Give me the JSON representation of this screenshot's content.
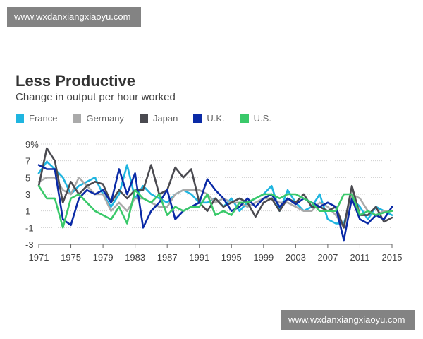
{
  "watermark": {
    "top": "www.wxdanxiangxiaoyu.com",
    "bottom": "www.wxdanxiangxiaoyu.com"
  },
  "chart_data": {
    "type": "line",
    "title": "Less Productive",
    "subtitle": "Change in output per hour worked",
    "xlabel": "",
    "ylabel": "",
    "ylim": [
      -3,
      9
    ],
    "xlim": [
      1971,
      2015
    ],
    "grid": "horizontal dotted",
    "legend_position": "top",
    "y_ticks": [
      "9%",
      "7",
      "5",
      "3",
      "1",
      "-1",
      "-3"
    ],
    "y_tick_values": [
      9,
      7,
      5,
      3,
      1,
      -1,
      -3
    ],
    "x_ticks": [
      "1971",
      "1975",
      "1979",
      "1983",
      "1987",
      "1991",
      "1995",
      "1999",
      "2003",
      "2007",
      "2011",
      "2015"
    ],
    "x_tick_values": [
      1971,
      1975,
      1979,
      1983,
      1987,
      1991,
      1995,
      1999,
      2003,
      2007,
      2011,
      2015
    ],
    "x": [
      1971,
      1972,
      1973,
      1974,
      1975,
      1976,
      1977,
      1978,
      1979,
      1980,
      1981,
      1982,
      1983,
      1984,
      1985,
      1986,
      1987,
      1988,
      1989,
      1990,
      1991,
      1992,
      1993,
      1994,
      1995,
      1996,
      1997,
      1998,
      1999,
      2000,
      2001,
      2002,
      2003,
      2004,
      2005,
      2006,
      2007,
      2008,
      2009,
      2010,
      2011,
      2012,
      2013,
      2014,
      2015
    ],
    "series": [
      {
        "name": "France",
        "color": "#1fb5e0",
        "values": [
          5.5,
          6.9,
          6.0,
          5.0,
          3.0,
          4.0,
          4.5,
          5.0,
          3.0,
          1.5,
          3.0,
          6.5,
          2.5,
          4.0,
          3.0,
          2.5,
          2.0,
          3.0,
          3.5,
          3.0,
          2.0,
          2.0,
          2.5,
          1.5,
          2.5,
          1.0,
          2.0,
          2.5,
          3.0,
          4.0,
          1.0,
          3.5,
          2.0,
          1.0,
          1.5,
          3.0,
          0.0,
          -0.5,
          -0.5,
          2.5,
          1.5,
          0.0,
          1.5,
          1.0,
          0.5
        ]
      },
      {
        "name": "Germany",
        "color": "#aaaaaa",
        "values": [
          4.5,
          5.0,
          5.0,
          3.5,
          3.0,
          5.0,
          4.0,
          3.0,
          3.0,
          1.0,
          2.0,
          1.0,
          2.5,
          2.5,
          2.0,
          1.5,
          1.5,
          3.0,
          3.5,
          3.5,
          3.5,
          3.0,
          2.0,
          2.5,
          2.0,
          2.0,
          1.5,
          2.0,
          2.5,
          2.5,
          2.0,
          2.0,
          1.5,
          1.0,
          1.0,
          2.0,
          1.5,
          0.5,
          -1.0,
          3.0,
          2.5,
          1.0,
          0.5,
          1.0,
          1.0
        ]
      },
      {
        "name": "Japan",
        "color": "#4a4a50",
        "values": [
          4.0,
          8.5,
          7.0,
          2.0,
          4.5,
          3.0,
          4.0,
          4.5,
          4.2,
          2.0,
          3.5,
          2.5,
          3.5,
          3.5,
          6.5,
          3.0,
          3.5,
          6.2,
          5.0,
          6.0,
          2.0,
          1.0,
          2.5,
          1.5,
          2.0,
          2.5,
          2.0,
          0.3,
          2.0,
          2.5,
          1.0,
          2.5,
          2.0,
          3.0,
          1.5,
          1.5,
          1.0,
          1.5,
          -1.0,
          4.0,
          0.5,
          0.5,
          1.5,
          -0.3,
          0.2
        ]
      },
      {
        "name": "U.K.",
        "color": "#0a2aa6",
        "values": [
          6.5,
          6.0,
          6.0,
          0.0,
          -0.7,
          2.5,
          3.5,
          3.0,
          3.5,
          2.0,
          6.0,
          3.0,
          5.5,
          -1.0,
          1.0,
          2.0,
          3.5,
          0.0,
          1.0,
          1.5,
          2.0,
          4.8,
          3.5,
          2.5,
          1.0,
          1.5,
          2.5,
          1.5,
          2.5,
          3.0,
          1.5,
          2.5,
          1.8,
          2.5,
          2.0,
          1.5,
          2.0,
          1.5,
          -2.5,
          2.5,
          0.0,
          -0.5,
          0.5,
          0.0,
          1.5
        ]
      },
      {
        "name": "U.S.",
        "color": "#3ac96a",
        "values": [
          4.0,
          2.5,
          2.5,
          -1.0,
          2.5,
          3.0,
          2.0,
          1.0,
          0.5,
          0.0,
          1.5,
          -0.5,
          3.5,
          2.5,
          2.0,
          3.0,
          0.5,
          1.5,
          1.0,
          1.5,
          1.5,
          3.0,
          0.5,
          1.0,
          0.5,
          2.0,
          2.0,
          2.5,
          3.0,
          3.0,
          2.5,
          3.0,
          3.0,
          2.5,
          2.0,
          1.0,
          1.0,
          1.0,
          3.0,
          3.0,
          0.5,
          1.0,
          0.5,
          0.8,
          1.0
        ]
      }
    ]
  }
}
